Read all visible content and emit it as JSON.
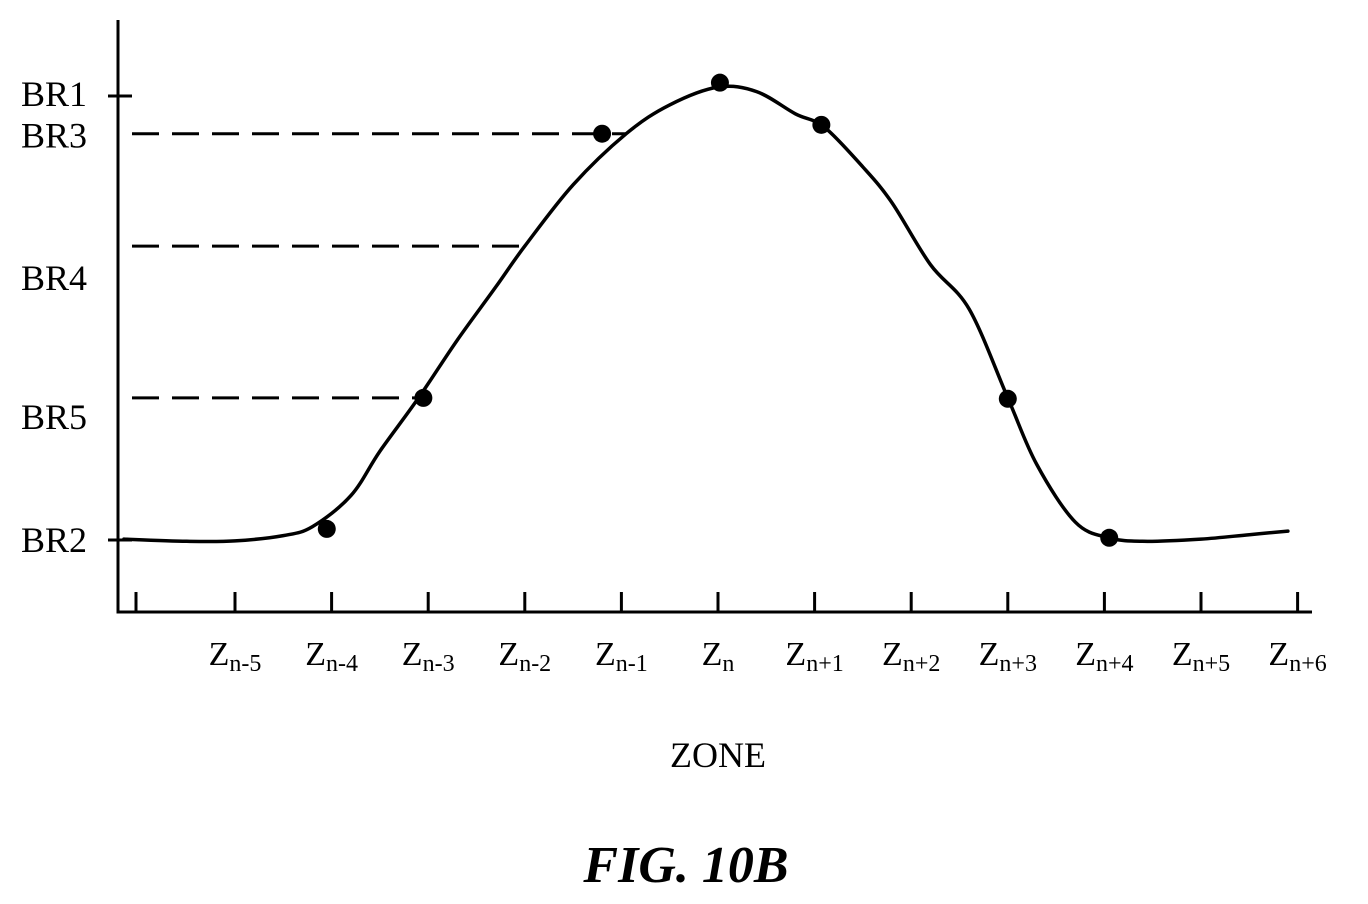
{
  "chart_data": {
    "type": "line",
    "title": "",
    "xlabel": "ZONE",
    "ylabel": "",
    "caption": "FIG. 10B",
    "x_ticks": [
      {
        "base": "Z",
        "sub": "n-5"
      },
      {
        "base": "Z",
        "sub": "n-4"
      },
      {
        "base": "Z",
        "sub": "n-3"
      },
      {
        "base": "Z",
        "sub": "n-2"
      },
      {
        "base": "Z",
        "sub": "n-1"
      },
      {
        "base": "Z",
        "sub": "n"
      },
      {
        "base": "Z",
        "sub": "n+1"
      },
      {
        "base": "Z",
        "sub": "n+2"
      },
      {
        "base": "Z",
        "sub": "n+3"
      },
      {
        "base": "Z",
        "sub": "n+4"
      },
      {
        "base": "Z",
        "sub": "n+5"
      },
      {
        "base": "Z",
        "sub": "n+6"
      }
    ],
    "y_levels": [
      {
        "label": "BR1",
        "value": 1.0,
        "tick": true,
        "dashed_to_x": null
      },
      {
        "label": "BR3",
        "value": 0.915,
        "tick": false,
        "dashed_to_x": -0.95
      },
      {
        "label": "BR4",
        "value": 0.662,
        "tick": false,
        "dashed_to_x": -2.0
      },
      {
        "label": "BR5",
        "value": 0.32,
        "tick": false,
        "dashed_to_x": -3.0
      },
      {
        "label": "BR2",
        "value": 0.0,
        "tick": true,
        "dashed_to_x": null
      }
    ],
    "ylim": [
      -0.16,
      1.17
    ],
    "xlim": [
      -6.95,
      6.0
    ],
    "series": [
      {
        "curve": [
          [
            -6.15,
            0.002
          ],
          [
            -5.5,
            -0.003
          ],
          [
            -5.0,
            -0.002
          ],
          [
            -4.5,
            0.01
          ],
          [
            -4.2,
            0.03
          ],
          [
            -3.8,
            0.1
          ],
          [
            -3.5,
            0.2
          ],
          [
            -3.1,
            0.32
          ],
          [
            -2.7,
            0.45
          ],
          [
            -2.3,
            0.57
          ],
          [
            -2.0,
            0.662
          ],
          [
            -1.5,
            0.8
          ],
          [
            -0.95,
            0.915
          ],
          [
            -0.5,
            0.98
          ],
          [
            0.0,
            1.02
          ],
          [
            0.4,
            1.01
          ],
          [
            0.8,
            0.96
          ],
          [
            1.1,
            0.93
          ],
          [
            1.5,
            0.84
          ],
          [
            1.8,
            0.76
          ],
          [
            2.2,
            0.62
          ],
          [
            2.6,
            0.52
          ],
          [
            3.0,
            0.32
          ],
          [
            3.3,
            0.17
          ],
          [
            3.7,
            0.04
          ],
          [
            4.05,
            0.005
          ],
          [
            4.4,
            -0.003
          ],
          [
            5.0,
            0.002
          ],
          [
            5.5,
            0.012
          ],
          [
            5.9,
            0.02
          ]
        ],
        "points": [
          [
            -4.05,
            0.025
          ],
          [
            -3.05,
            0.32
          ],
          [
            -1.2,
            0.915
          ],
          [
            0.02,
            1.03
          ],
          [
            1.07,
            0.935
          ],
          [
            3.0,
            0.318
          ],
          [
            4.05,
            0.005
          ]
        ]
      }
    ]
  }
}
